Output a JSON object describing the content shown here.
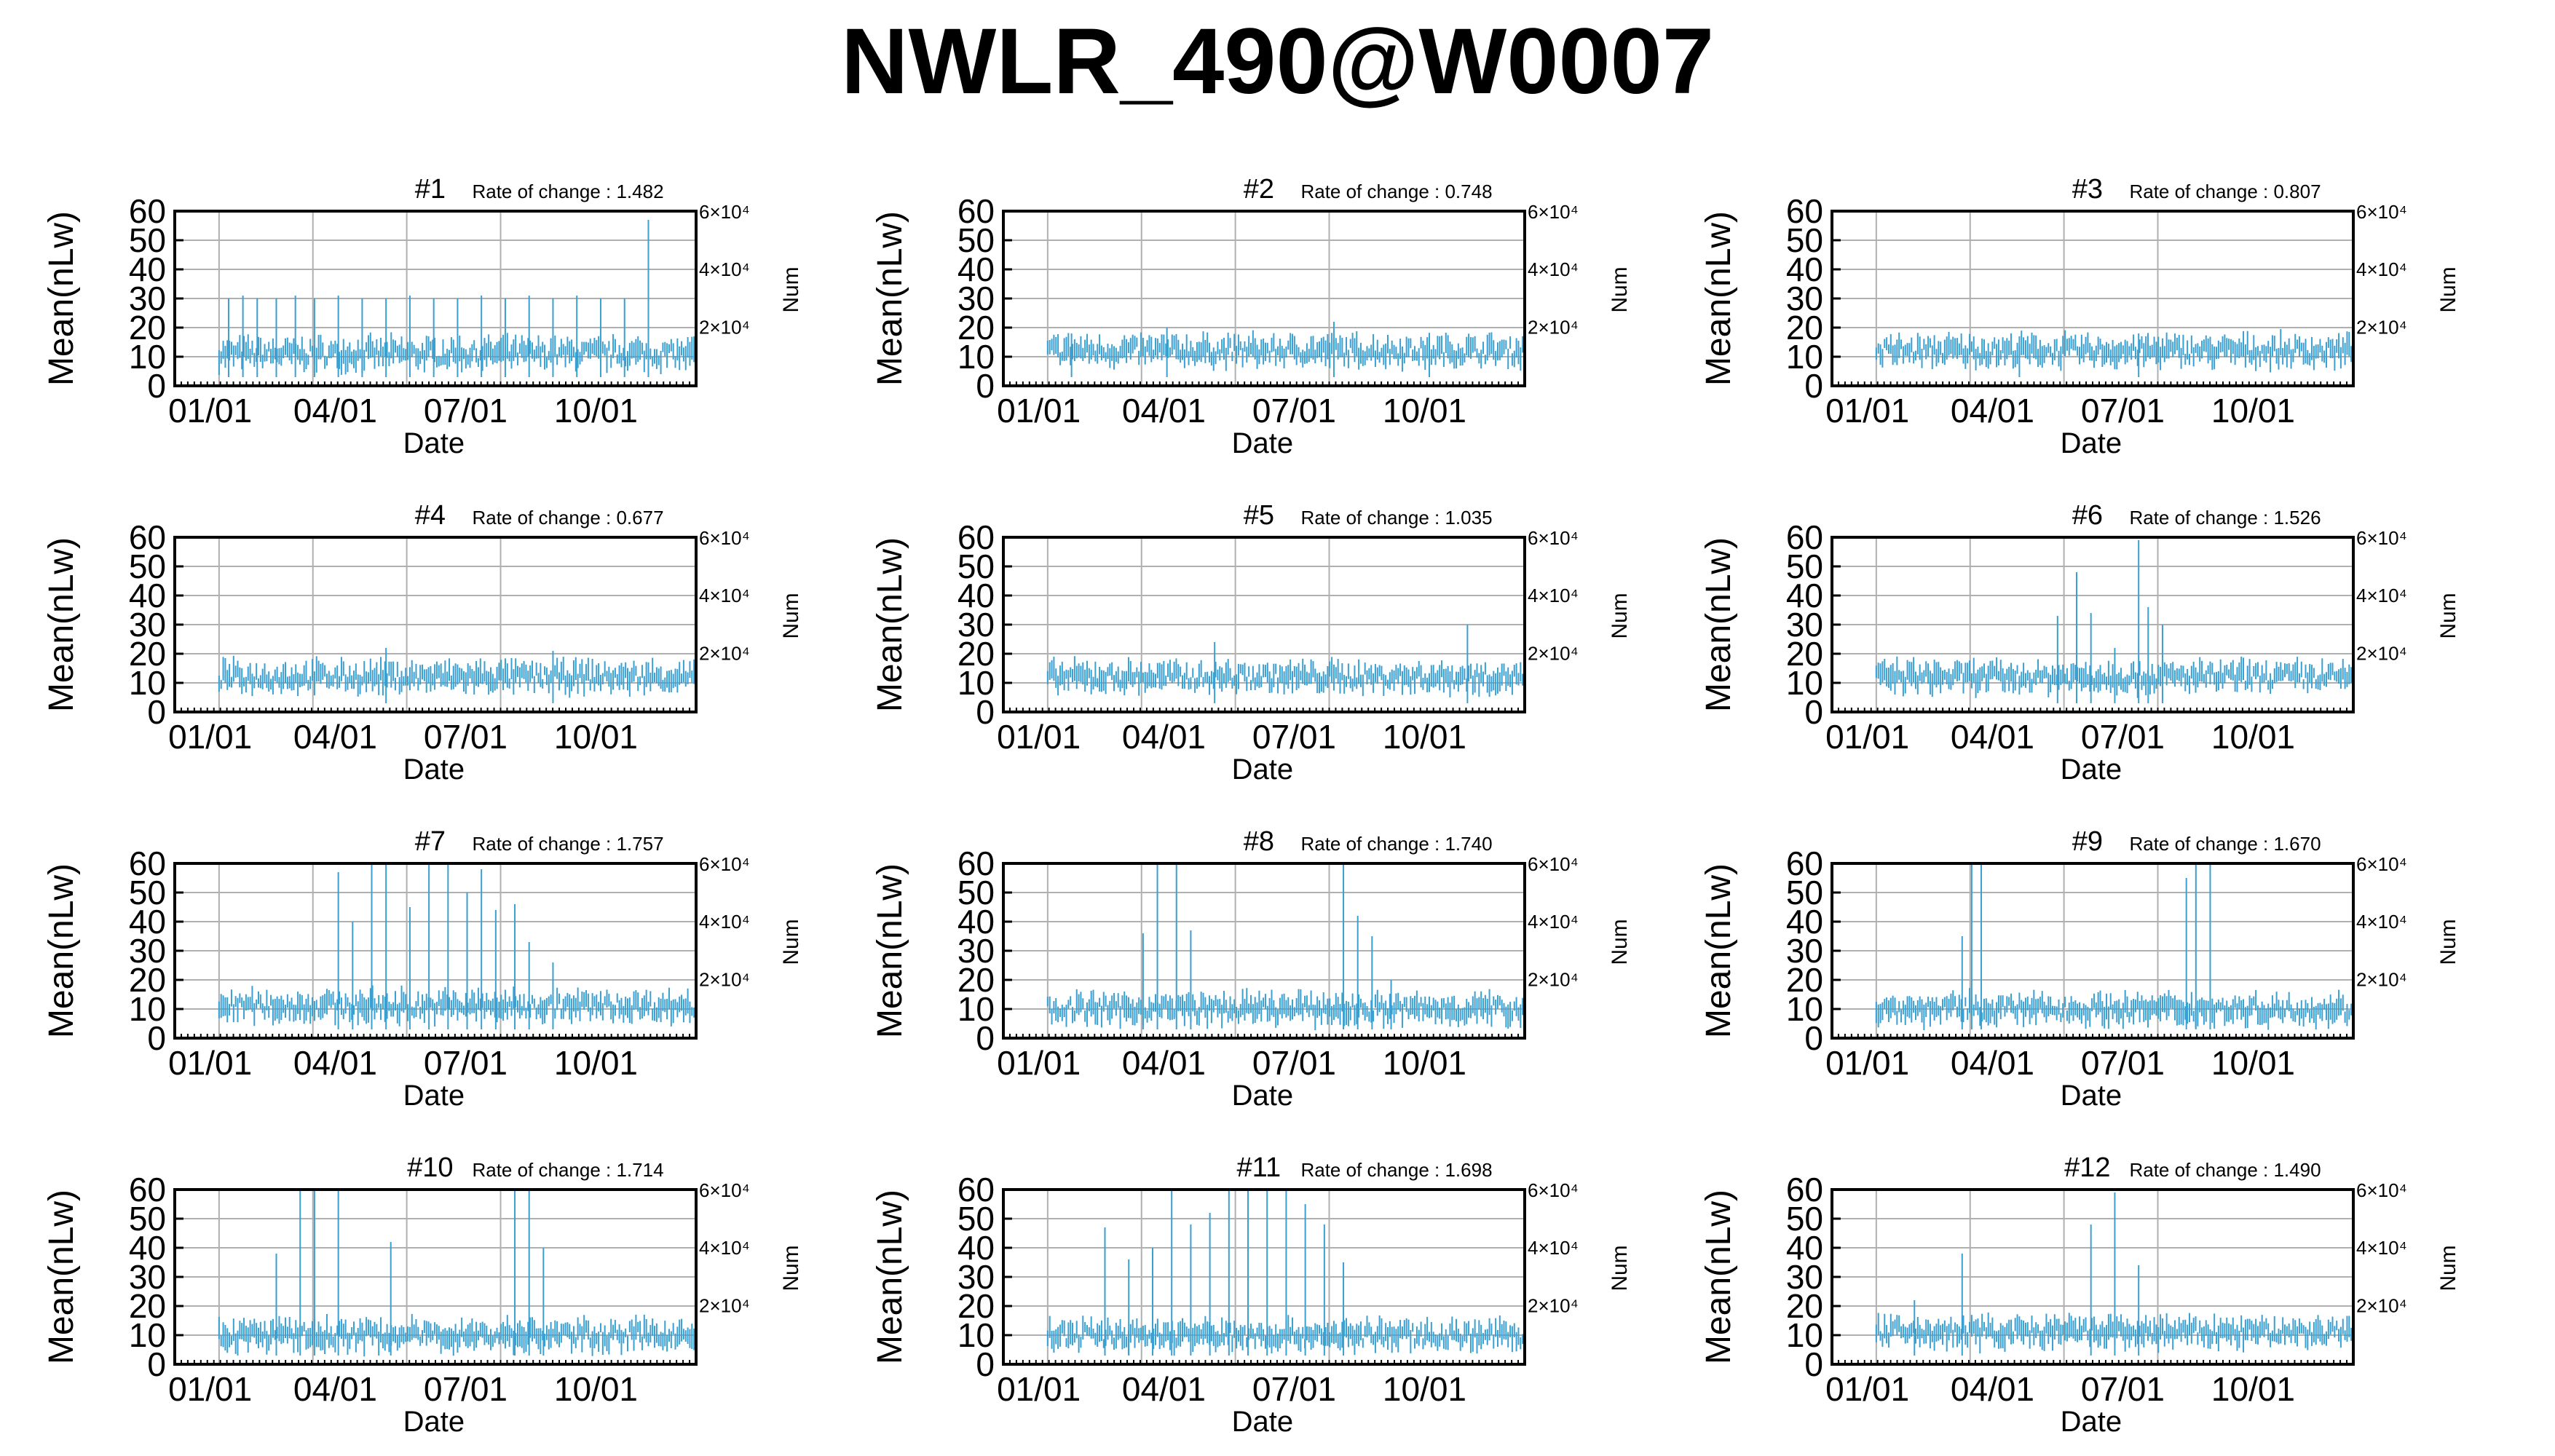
{
  "title": "NWLR_490@W0007",
  "colors": {
    "series": "#3a9fd1",
    "grid": "#b0b0b0",
    "axis": "#000000"
  },
  "chart_data": [
    {
      "type": "line",
      "panel": "#1",
      "rate_label": "Rate of change : 1.482",
      "xlabel": "Date",
      "ylabel": "Mean(nLw)",
      "y2label": "Num",
      "ylim": [
        0,
        60
      ],
      "y_ticks": [
        0,
        10,
        20,
        30,
        40,
        50,
        60
      ],
      "y2_ticks": [
        "6×10⁴",
        "4×10⁴",
        "2×10⁴"
      ],
      "x_ticks": [
        "01/01",
        "04/01",
        "07/01",
        "10/01"
      ],
      "grid": true,
      "series": [
        {
          "baseline": 11,
          "spread": 3,
          "spikes": [
            [
              0.02,
              30
            ],
            [
              0.05,
              31
            ],
            [
              0.08,
              30
            ],
            [
              0.12,
              30
            ],
            [
              0.16,
              31
            ],
            [
              0.2,
              30
            ],
            [
              0.25,
              31
            ],
            [
              0.3,
              30
            ],
            [
              0.35,
              30
            ],
            [
              0.4,
              31
            ],
            [
              0.45,
              30
            ],
            [
              0.5,
              30
            ],
            [
              0.55,
              31
            ],
            [
              0.6,
              30
            ],
            [
              0.65,
              31
            ],
            [
              0.7,
              30
            ],
            [
              0.75,
              31
            ],
            [
              0.8,
              30
            ],
            [
              0.85,
              30
            ],
            [
              0.9,
              57
            ]
          ]
        }
      ]
    },
    {
      "type": "line",
      "panel": "#2",
      "rate_label": "Rate of change : 0.748",
      "xlabel": "Date",
      "ylabel": "Mean(nLw)",
      "y2label": "Num",
      "ylim": [
        0,
        60
      ],
      "y_ticks": [
        0,
        10,
        20,
        30,
        40,
        50,
        60
      ],
      "y2_ticks": [
        "6×10⁴",
        "4×10⁴",
        "2×10⁴"
      ],
      "x_ticks": [
        "01/01",
        "04/01",
        "07/01",
        "10/01"
      ],
      "grid": true,
      "series": [
        {
          "baseline": 12,
          "spread": 3,
          "spikes": [
            [
              0.05,
              18
            ],
            [
              0.25,
              20
            ],
            [
              0.6,
              22
            ],
            [
              0.8,
              17
            ]
          ]
        }
      ]
    },
    {
      "type": "line",
      "panel": "#3",
      "rate_label": "Rate of change : 0.807",
      "xlabel": "Date",
      "ylabel": "Mean(nLw)",
      "y2label": "Num",
      "ylim": [
        0,
        60
      ],
      "y_ticks": [
        0,
        10,
        20,
        30,
        40,
        50,
        60
      ],
      "y2_ticks": [
        "6×10⁴",
        "4×10⁴",
        "2×10⁴"
      ],
      "x_ticks": [
        "01/01",
        "04/01",
        "07/01",
        "10/01"
      ],
      "grid": true,
      "series": [
        {
          "baseline": 12,
          "spread": 3,
          "spikes": [
            [
              0.3,
              17
            ],
            [
              0.55,
              18
            ]
          ]
        }
      ]
    },
    {
      "type": "line",
      "panel": "#4",
      "rate_label": "Rate of change : 0.677",
      "xlabel": "Date",
      "ylabel": "Mean(nLw)",
      "y2label": "Num",
      "ylim": [
        0,
        60
      ],
      "y_ticks": [
        0,
        10,
        20,
        30,
        40,
        50,
        60
      ],
      "y2_ticks": [
        "6×10⁴",
        "4×10⁴",
        "2×10⁴"
      ],
      "x_ticks": [
        "01/01",
        "04/01",
        "07/01",
        "10/01"
      ],
      "grid": true,
      "series": [
        {
          "baseline": 12,
          "spread": 3,
          "spikes": [
            [
              0.35,
              22
            ],
            [
              0.7,
              21
            ]
          ]
        }
      ]
    },
    {
      "type": "line",
      "panel": "#5",
      "rate_label": "Rate of change : 1.035",
      "xlabel": "Date",
      "ylabel": "Mean(nLw)",
      "y2label": "Num",
      "ylim": [
        0,
        60
      ],
      "y_ticks": [
        0,
        10,
        20,
        30,
        40,
        50,
        60
      ],
      "y2_ticks": [
        "6×10⁴",
        "4×10⁴",
        "2×10⁴"
      ],
      "x_ticks": [
        "01/01",
        "04/01",
        "07/01",
        "10/01"
      ],
      "grid": true,
      "series": [
        {
          "baseline": 12,
          "spread": 3,
          "spikes": [
            [
              0.35,
              24
            ],
            [
              0.88,
              30
            ]
          ]
        }
      ]
    },
    {
      "type": "line",
      "panel": "#6",
      "rate_label": "Rate of change : 1.526",
      "xlabel": "Date",
      "ylabel": "Mean(nLw)",
      "y2label": "Num",
      "ylim": [
        0,
        60
      ],
      "y_ticks": [
        0,
        10,
        20,
        30,
        40,
        50,
        60
      ],
      "y2_ticks": [
        "6×10⁴",
        "4×10⁴",
        "2×10⁴"
      ],
      "x_ticks": [
        "01/01",
        "04/01",
        "07/01",
        "10/01"
      ],
      "grid": true,
      "series": [
        {
          "baseline": 12,
          "spread": 3,
          "spikes": [
            [
              0.38,
              33
            ],
            [
              0.42,
              48
            ],
            [
              0.45,
              34
            ],
            [
              0.5,
              22
            ],
            [
              0.55,
              59
            ],
            [
              0.57,
              36
            ],
            [
              0.6,
              30
            ]
          ]
        }
      ]
    },
    {
      "type": "line",
      "panel": "#7",
      "rate_label": "Rate of change : 1.757",
      "xlabel": "Date",
      "ylabel": "Mean(nLw)",
      "y2label": "Num",
      "ylim": [
        0,
        60
      ],
      "y_ticks": [
        0,
        10,
        20,
        30,
        40,
        50,
        60
      ],
      "y2_ticks": [
        "6×10⁴",
        "4×10⁴",
        "2×10⁴"
      ],
      "x_ticks": [
        "01/01",
        "04/01",
        "07/01",
        "10/01"
      ],
      "grid": true,
      "series": [
        {
          "baseline": 11,
          "spread": 3,
          "spikes": [
            [
              0.25,
              57
            ],
            [
              0.28,
              40
            ],
            [
              0.32,
              60
            ],
            [
              0.35,
              60
            ],
            [
              0.4,
              45
            ],
            [
              0.44,
              60
            ],
            [
              0.48,
              60
            ],
            [
              0.52,
              50
            ],
            [
              0.55,
              58
            ],
            [
              0.58,
              44
            ],
            [
              0.62,
              46
            ],
            [
              0.65,
              33
            ],
            [
              0.7,
              26
            ]
          ]
        }
      ]
    },
    {
      "type": "line",
      "panel": "#8",
      "rate_label": "Rate of change : 1.740",
      "xlabel": "Date",
      "ylabel": "Mean(nLw)",
      "y2label": "Num",
      "ylim": [
        0,
        60
      ],
      "y_ticks": [
        0,
        10,
        20,
        30,
        40,
        50,
        60
      ],
      "y2_ticks": [
        "6×10⁴",
        "4×10⁴",
        "2×10⁴"
      ],
      "x_ticks": [
        "01/01",
        "04/01",
        "07/01",
        "10/01"
      ],
      "grid": true,
      "series": [
        {
          "baseline": 10,
          "spread": 3,
          "spikes": [
            [
              0.2,
              36
            ],
            [
              0.23,
              60
            ],
            [
              0.27,
              60
            ],
            [
              0.3,
              37
            ],
            [
              0.62,
              60
            ],
            [
              0.65,
              42
            ],
            [
              0.68,
              35
            ],
            [
              0.72,
              20
            ]
          ]
        }
      ]
    },
    {
      "type": "line",
      "panel": "#9",
      "rate_label": "Rate of change : 1.670",
      "xlabel": "Date",
      "ylabel": "Mean(nLw)",
      "y2label": "Num",
      "ylim": [
        0,
        60
      ],
      "y_ticks": [
        0,
        10,
        20,
        30,
        40,
        50,
        60
      ],
      "y2_ticks": [
        "6×10⁴",
        "4×10⁴",
        "2×10⁴"
      ],
      "x_ticks": [
        "01/01",
        "04/01",
        "07/01",
        "10/01"
      ],
      "grid": true,
      "series": [
        {
          "baseline": 10,
          "spread": 3,
          "spikes": [
            [
              0.18,
              35
            ],
            [
              0.2,
              60
            ],
            [
              0.22,
              60
            ],
            [
              0.65,
              55
            ],
            [
              0.67,
              60
            ],
            [
              0.7,
              60
            ]
          ]
        }
      ]
    },
    {
      "type": "line",
      "panel": "#10",
      "rate_label": "Rate of change : 1.714",
      "xlabel": "Date",
      "ylabel": "Mean(nLw)",
      "y2label": "Num",
      "ylim": [
        0,
        60
      ],
      "y_ticks": [
        0,
        10,
        20,
        30,
        40,
        50,
        60
      ],
      "y2_ticks": [
        "6×10⁴",
        "4×10⁴",
        "2×10⁴"
      ],
      "x_ticks": [
        "01/01",
        "04/01",
        "07/01",
        "10/01"
      ],
      "grid": true,
      "series": [
        {
          "baseline": 10,
          "spread": 3,
          "spikes": [
            [
              0.12,
              38
            ],
            [
              0.17,
              60
            ],
            [
              0.2,
              60
            ],
            [
              0.25,
              60
            ],
            [
              0.36,
              42
            ],
            [
              0.62,
              60
            ],
            [
              0.65,
              60
            ],
            [
              0.68,
              40
            ]
          ]
        }
      ]
    },
    {
      "type": "line",
      "panel": "#11",
      "rate_label": "Rate of change : 1.698",
      "xlabel": "Date",
      "ylabel": "Mean(nLw)",
      "y2label": "Num",
      "ylim": [
        0,
        60
      ],
      "y_ticks": [
        0,
        10,
        20,
        30,
        40,
        50,
        60
      ],
      "y2_ticks": [
        "6×10⁴",
        "4×10⁴",
        "2×10⁴"
      ],
      "x_ticks": [
        "01/01",
        "04/01",
        "07/01",
        "10/01"
      ],
      "grid": true,
      "series": [
        {
          "baseline": 10,
          "spread": 3,
          "spikes": [
            [
              0.12,
              47
            ],
            [
              0.17,
              36
            ],
            [
              0.22,
              40
            ],
            [
              0.26,
              60
            ],
            [
              0.3,
              48
            ],
            [
              0.34,
              52
            ],
            [
              0.38,
              60
            ],
            [
              0.42,
              60
            ],
            [
              0.46,
              60
            ],
            [
              0.5,
              60
            ],
            [
              0.54,
              55
            ],
            [
              0.58,
              48
            ],
            [
              0.62,
              35
            ]
          ]
        }
      ]
    },
    {
      "type": "line",
      "panel": "#12",
      "rate_label": "Rate of change : 1.490",
      "xlabel": "Date",
      "ylabel": "Mean(nLw)",
      "y2label": "Num",
      "ylim": [
        0,
        60
      ],
      "y_ticks": [
        0,
        10,
        20,
        30,
        40,
        50,
        60
      ],
      "y2_ticks": [
        "6×10⁴",
        "4×10⁴",
        "2×10⁴"
      ],
      "x_ticks": [
        "01/01",
        "04/01",
        "07/01",
        "10/01"
      ],
      "grid": true,
      "series": [
        {
          "baseline": 11,
          "spread": 3,
          "spikes": [
            [
              0.08,
              22
            ],
            [
              0.18,
              38
            ],
            [
              0.45,
              48
            ],
            [
              0.5,
              59
            ],
            [
              0.55,
              34
            ]
          ]
        }
      ]
    }
  ]
}
